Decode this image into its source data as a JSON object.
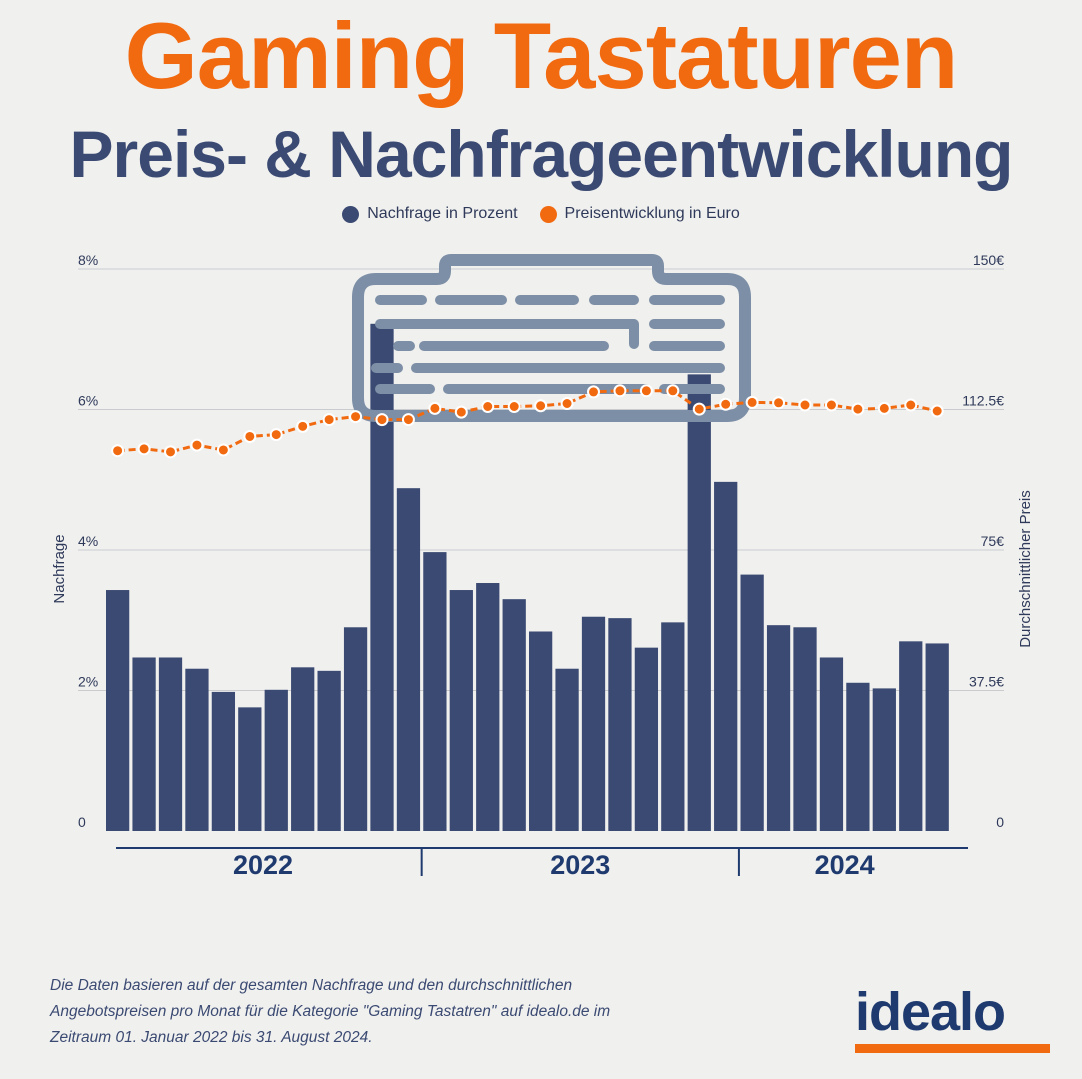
{
  "title": "Gaming Tastaturen",
  "subtitle": "Preis- & Nachfrageentwicklung",
  "legend": [
    {
      "label": "Nachfrage in Prozent",
      "color": "#3b4a72"
    },
    {
      "label": "Preisentwicklung in Euro",
      "color": "#f26a10"
    }
  ],
  "footnote": "Die Daten basieren auf der gesamten Nachfrage und den durchschnittlichen Angebotspreisen pro Monat für die Kategorie \"Gaming Tastatren\" auf idealo.de im Zeitraum 01. Januar 2022 bis 31. August 2024.",
  "logo": "idealo",
  "decoration_icon": "keyboard-icon",
  "chart_data": {
    "type": "bar",
    "xlabel": "",
    "ylabel": "Nachfrage",
    "y2label": "Durchschnittlicher Preis",
    "ylim": [
      0,
      8
    ],
    "y2lim": [
      0,
      150
    ],
    "left_ticks": [
      "0",
      "2%",
      "4%",
      "6%",
      "8%"
    ],
    "right_ticks": [
      "0",
      "37.5€",
      "75€",
      "112.5€",
      "150€"
    ],
    "years": [
      {
        "label": "2022",
        "months": 12
      },
      {
        "label": "2023",
        "months": 12
      },
      {
        "label": "2024",
        "months": 8
      }
    ],
    "series": [
      {
        "name": "Nachfrage in Prozent",
        "type": "bar",
        "color": "#3b4a72",
        "values": [
          3.43,
          2.47,
          2.47,
          2.31,
          1.98,
          1.76,
          2.01,
          2.33,
          2.28,
          2.9,
          7.22,
          4.88,
          3.97,
          3.43,
          3.53,
          3.3,
          2.84,
          2.31,
          3.05,
          3.03,
          2.61,
          2.97,
          6.5,
          4.97,
          3.65,
          2.93,
          2.9,
          2.47,
          2.11,
          2.03,
          2.7,
          2.67
        ]
      },
      {
        "name": "Preisentwicklung in Euro",
        "type": "line",
        "color": "#f26a10",
        "values": [
          101.5,
          102.0,
          101.2,
          103.0,
          101.7,
          105.3,
          105.8,
          108.0,
          109.8,
          110.6,
          109.8,
          109.8,
          112.8,
          111.8,
          113.3,
          113.3,
          113.5,
          114.1,
          117.2,
          117.5,
          117.5,
          117.5,
          112.6,
          113.9,
          114.4,
          114.3,
          113.7,
          113.7,
          112.6,
          112.8,
          113.7,
          112.1
        ]
      }
    ]
  }
}
